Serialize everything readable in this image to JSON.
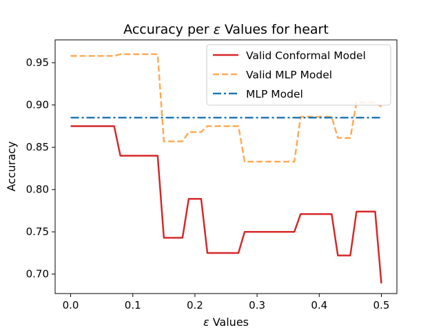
{
  "chart_data": {
    "type": "line",
    "title_prefix": "Accuracy per ",
    "title_symbol": "ε",
    "title_suffix": " Values for heart",
    "xlabel_symbol": "ε",
    "xlabel_suffix": " Values",
    "ylabel": "Accuracy",
    "xlim": [
      -0.025,
      0.525
    ],
    "ylim": [
      0.677,
      0.977
    ],
    "xticks": [
      0.0,
      0.1,
      0.2,
      0.3,
      0.4,
      0.5
    ],
    "xtick_labels": [
      "0.0",
      "0.1",
      "0.2",
      "0.3",
      "0.4",
      "0.5"
    ],
    "yticks": [
      0.7,
      0.75,
      0.8,
      0.85,
      0.9,
      0.95
    ],
    "ytick_labels": [
      "0.70",
      "0.75",
      "0.80",
      "0.85",
      "0.90",
      "0.95"
    ],
    "legend_position": "top-right",
    "x": [
      0.0,
      0.01,
      0.02,
      0.03,
      0.04,
      0.05,
      0.06,
      0.07,
      0.08,
      0.09,
      0.1,
      0.11,
      0.12,
      0.13,
      0.14,
      0.15,
      0.16,
      0.17,
      0.18,
      0.19,
      0.2,
      0.21,
      0.22,
      0.23,
      0.24,
      0.25,
      0.26,
      0.27,
      0.28,
      0.29,
      0.3,
      0.31,
      0.32,
      0.33,
      0.34,
      0.35,
      0.36,
      0.37,
      0.38,
      0.39,
      0.4,
      0.41,
      0.42,
      0.43,
      0.44,
      0.45,
      0.46,
      0.47,
      0.48,
      0.49,
      0.5
    ],
    "series": [
      {
        "name": "Valid Conformal Model",
        "color": "#d62728",
        "style": "solid",
        "values": [
          0.875,
          0.875,
          0.875,
          0.875,
          0.875,
          0.875,
          0.875,
          0.875,
          0.84,
          0.84,
          0.84,
          0.84,
          0.84,
          0.84,
          0.84,
          0.743,
          0.743,
          0.743,
          0.743,
          0.789,
          0.789,
          0.789,
          0.725,
          0.725,
          0.725,
          0.725,
          0.725,
          0.725,
          0.75,
          0.75,
          0.75,
          0.75,
          0.75,
          0.75,
          0.75,
          0.75,
          0.75,
          0.771,
          0.771,
          0.771,
          0.771,
          0.771,
          0.771,
          0.722,
          0.722,
          0.722,
          0.774,
          0.774,
          0.774,
          0.774,
          0.689
        ]
      },
      {
        "name": "Valid MLP Model",
        "color": "#ffaa55",
        "style": "dashed",
        "values": [
          0.958,
          0.958,
          0.958,
          0.958,
          0.958,
          0.958,
          0.958,
          0.958,
          0.96,
          0.96,
          0.96,
          0.96,
          0.96,
          0.96,
          0.96,
          0.857,
          0.857,
          0.857,
          0.857,
          0.868,
          0.868,
          0.868,
          0.875,
          0.875,
          0.875,
          0.875,
          0.875,
          0.875,
          0.833,
          0.833,
          0.833,
          0.833,
          0.833,
          0.833,
          0.833,
          0.833,
          0.833,
          0.886,
          0.886,
          0.886,
          0.886,
          0.886,
          0.886,
          0.861,
          0.861,
          0.861,
          0.903,
          0.903,
          0.903,
          0.903,
          0.898
        ]
      },
      {
        "name": "MLP Model",
        "color": "#1f77b4",
        "style": "dashdot",
        "values": [
          0.885,
          0.885,
          0.885,
          0.885,
          0.885,
          0.885,
          0.885,
          0.885,
          0.885,
          0.885,
          0.885,
          0.885,
          0.885,
          0.885,
          0.885,
          0.885,
          0.885,
          0.885,
          0.885,
          0.885,
          0.885,
          0.885,
          0.885,
          0.885,
          0.885,
          0.885,
          0.885,
          0.885,
          0.885,
          0.885,
          0.885,
          0.885,
          0.885,
          0.885,
          0.885,
          0.885,
          0.885,
          0.885,
          0.885,
          0.885,
          0.885,
          0.885,
          0.885,
          0.885,
          0.885,
          0.885,
          0.885,
          0.885,
          0.885,
          0.885,
          0.885
        ]
      }
    ]
  }
}
